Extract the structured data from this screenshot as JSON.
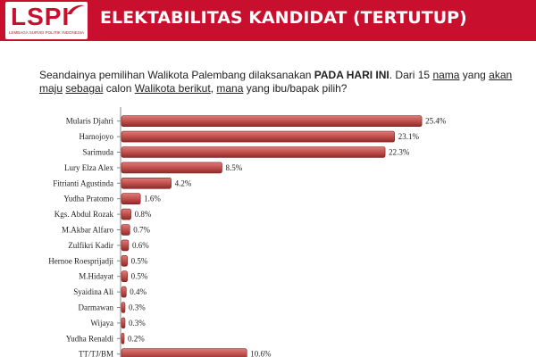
{
  "header": {
    "logo_text": "LSPI",
    "logo_subtitle": "LEMBAGA SURVEI POLITIK INDONESIA",
    "title": "ELEKTABILITAS KANDIDAT (TERTUTUP)",
    "colors": {
      "brand_red": "#c8102e",
      "bar_red": "#c0504d"
    }
  },
  "question": {
    "part1": "Seandainya pemilihan Walikota Palembang dilaksanakan ",
    "emphasis": "PADA HARI INI",
    "part2": ". Dari 15 ",
    "ul1": "nama",
    "part3": " yang ",
    "ul2": "akan maju",
    "part4": " ",
    "ul3": "sebagai",
    "part5": " calon ",
    "ul4": "Walikota berikut",
    "part6": ", ",
    "ul5": "mana",
    "part7": " yang ibu/bapak pilih?"
  },
  "chart_data": {
    "type": "bar",
    "orientation": "horizontal",
    "categories": [
      "Mularis Djahri",
      "Harnojoyo",
      "Sarimuda",
      "Lury Elza Alex",
      "Fitrianti Agustinda",
      "Yudha Pratomo",
      "Kgs. Abdul Rozak",
      "M.Akbar Alfaro",
      "Zulfikri Kadir",
      "Hernoe Roesprijadji",
      "M.Hidayat",
      "Syaidina Ali",
      "Darmawan",
      "Wijaya",
      "Yudha Renaldi",
      "TT/TJ/BM"
    ],
    "values": [
      25.4,
      23.1,
      22.3,
      8.5,
      4.2,
      1.6,
      0.8,
      0.7,
      0.6,
      0.5,
      0.5,
      0.4,
      0.3,
      0.3,
      0.2,
      10.6
    ],
    "value_labels": [
      "25.4%",
      "23.1%",
      "22.3%",
      "8.5%",
      "4.2%",
      "1.6%",
      "0.8%",
      "0.7%",
      "0.6%",
      "0.5%",
      "0.5%",
      "0.4%",
      "0.3%",
      "0.3%",
      "0.2%",
      "10.6%"
    ],
    "xlim": [
      0,
      30
    ],
    "grid": false,
    "legend": "none"
  }
}
